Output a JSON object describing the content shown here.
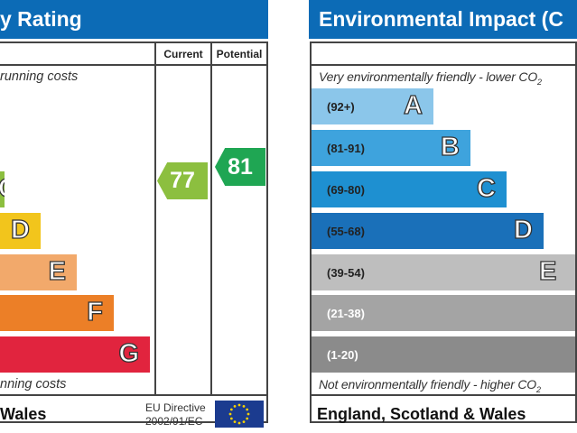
{
  "energy": {
    "title": "y Rating",
    "col_current": "Current",
    "col_potential": "Potential",
    "top_text": "running costs",
    "bottom_text": "nning costs",
    "footer": "Wales",
    "directive_line1": "EU Directive",
    "directive_line2": "2002/91/EC",
    "flag_icon": "eu-flag",
    "bands": [
      {
        "letter": "C",
        "color": "#8cbf3f"
      },
      {
        "letter": "D",
        "color": "#f2c51c"
      },
      {
        "letter": "E",
        "color": "#f2a96b"
      },
      {
        "letter": "F",
        "color": "#ec7f27"
      },
      {
        "letter": "G",
        "color": "#e1243e"
      }
    ],
    "current": {
      "value": "77",
      "color": "#8cbf3f"
    },
    "potential": {
      "value": "81",
      "color": "#1fa653"
    }
  },
  "environmental": {
    "title": "Environmental Impact (C",
    "top_text": "Very environmentally friendly - lower CO",
    "top_sub": "2",
    "bottom_text": "Not environmentally friendly - higher CO",
    "bottom_sub": "2",
    "footer": "England, Scotland & Wales",
    "bands": [
      {
        "range": "(92+)",
        "letter": "A",
        "color": "#8bc6ea",
        "text": "#222"
      },
      {
        "range": "(81-91)",
        "letter": "B",
        "color": "#3ea3dd",
        "text": "#222"
      },
      {
        "range": "(69-80)",
        "letter": "C",
        "color": "#1e90d1",
        "text": "#222"
      },
      {
        "range": "(55-68)",
        "letter": "D",
        "color": "#1a70b9",
        "text": "#222"
      },
      {
        "range": "(39-54)",
        "letter": "E",
        "color": "#bebebe",
        "text": "#222"
      },
      {
        "range": "(21-38)",
        "letter": "",
        "color": "#a4a4a4",
        "text": "#fff"
      },
      {
        "range": "(1-20)",
        "letter": "",
        "color": "#8b8b8b",
        "text": "#fff"
      }
    ]
  }
}
